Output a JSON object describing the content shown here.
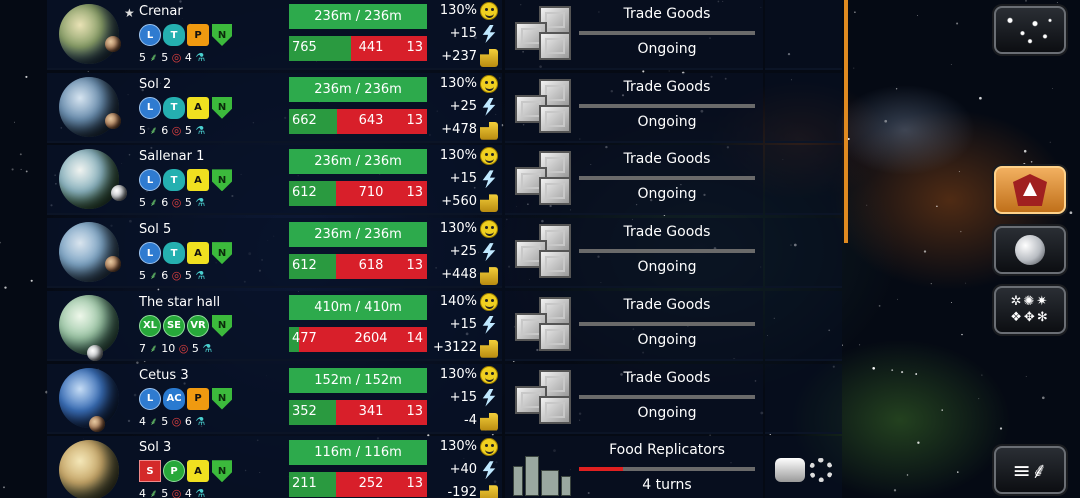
{
  "colors": {
    "pop_bar": "#2daa4c",
    "res_good": "#2a9a40",
    "res_bad": "#d81f2a",
    "scroll_thumb": "#e08a20",
    "active_button": "#e08a20"
  },
  "planets": [
    {
      "name": "Crenar",
      "starred": true,
      "badges": [
        {
          "t": "L",
          "k": "blue"
        },
        {
          "t": "T",
          "k": "cloud"
        },
        {
          "t": "P",
          "k": "orange"
        },
        {
          "t": "N",
          "k": "arrow"
        }
      ],
      "stat_a": "5",
      "stat_b": "5",
      "stat_c": "4",
      "population": "236m / 236m",
      "res_a": "765",
      "res_b": "441",
      "res_c": "13",
      "res_fraction": 0.45,
      "approval": "130%",
      "energy": "+15",
      "income": "+237",
      "project": "Trade Goods",
      "status": "Ongoing",
      "project_type": "crates",
      "progress": null
    },
    {
      "name": "Sol 2",
      "starred": false,
      "badges": [
        {
          "t": "L",
          "k": "blue"
        },
        {
          "t": "T",
          "k": "cloud"
        },
        {
          "t": "A",
          "k": "yellow"
        },
        {
          "t": "N",
          "k": "arrow"
        }
      ],
      "stat_a": "5",
      "stat_b": "6",
      "stat_c": "5",
      "population": "236m / 236m",
      "res_a": "662",
      "res_b": "643",
      "res_c": "13",
      "res_fraction": 0.35,
      "approval": "130%",
      "energy": "+25",
      "income": "+478",
      "project": "Trade Goods",
      "status": "Ongoing",
      "project_type": "crates",
      "progress": null
    },
    {
      "name": "Sallenar 1",
      "starred": false,
      "badges": [
        {
          "t": "L",
          "k": "blue"
        },
        {
          "t": "T",
          "k": "cloud"
        },
        {
          "t": "A",
          "k": "yellow"
        },
        {
          "t": "N",
          "k": "arrow"
        }
      ],
      "stat_a": "5",
      "stat_b": "6",
      "stat_c": "5",
      "population": "236m / 236m",
      "res_a": "612",
      "res_b": "710",
      "res_c": "13",
      "res_fraction": 0.34,
      "approval": "130%",
      "energy": "+15",
      "income": "+560",
      "project": "Trade Goods",
      "status": "Ongoing",
      "project_type": "crates",
      "progress": null
    },
    {
      "name": "Sol 5",
      "starred": false,
      "badges": [
        {
          "t": "L",
          "k": "blue"
        },
        {
          "t": "T",
          "k": "cloud"
        },
        {
          "t": "A",
          "k": "yellow"
        },
        {
          "t": "N",
          "k": "arrow"
        }
      ],
      "stat_a": "5",
      "stat_b": "6",
      "stat_c": "5",
      "population": "236m / 236m",
      "res_a": "612",
      "res_b": "618",
      "res_c": "13",
      "res_fraction": 0.34,
      "approval": "130%",
      "energy": "+25",
      "income": "+448",
      "project": "Trade Goods",
      "status": "Ongoing",
      "project_type": "crates",
      "progress": null
    },
    {
      "name": "The star hall",
      "starred": false,
      "badges": [
        {
          "t": "XL",
          "k": "green"
        },
        {
          "t": "SE",
          "k": "green"
        },
        {
          "t": "VR",
          "k": "green"
        },
        {
          "t": "N",
          "k": "arrow"
        }
      ],
      "stat_a": "7",
      "stat_b": "10",
      "stat_c": "5",
      "population": "410m / 410m",
      "res_a": "477",
      "res_b": "2604",
      "res_c": "14",
      "res_fraction": 0.07,
      "approval": "140%",
      "energy": "+15",
      "income": "+3122",
      "project": "Trade Goods",
      "status": "Ongoing",
      "project_type": "crates",
      "progress": null
    },
    {
      "name": "Cetus 3",
      "starred": false,
      "badges": [
        {
          "t": "L",
          "k": "blue"
        },
        {
          "t": "AC",
          "k": "cloudblue"
        },
        {
          "t": "P",
          "k": "orange"
        },
        {
          "t": "N",
          "k": "arrow"
        }
      ],
      "stat_a": "4",
      "stat_b": "5",
      "stat_c": "6",
      "population": "152m / 152m",
      "res_a": "352",
      "res_b": "341",
      "res_c": "13",
      "res_fraction": 0.34,
      "approval": "130%",
      "energy": "+15",
      "income": "-4",
      "project": "Trade Goods",
      "status": "Ongoing",
      "project_type": "crates",
      "progress": null
    },
    {
      "name": "Sol 3",
      "starred": false,
      "badges": [
        {
          "t": "S",
          "k": "red"
        },
        {
          "t": "P",
          "k": "green"
        },
        {
          "t": "A",
          "k": "yellow"
        },
        {
          "t": "N",
          "k": "arrow"
        }
      ],
      "stat_a": "4",
      "stat_b": "5",
      "stat_c": "4",
      "population": "116m / 116m",
      "res_a": "211",
      "res_b": "252",
      "res_c": "13",
      "res_fraction": 0.34,
      "approval": "130%",
      "energy": "+40",
      "income": "-192",
      "project": "Food Replicators",
      "status": "4 turns",
      "project_type": "factory",
      "progress": 0.25
    }
  ],
  "sidebar": {
    "buttons": [
      {
        "name": "galaxy-map-button",
        "icon": "stars-icon",
        "active": false
      },
      {
        "name": "empire-emblem-button",
        "icon": "emblem-icon",
        "active": true
      },
      {
        "name": "planets-button",
        "icon": "moon-icon",
        "active": false
      },
      {
        "name": "races-button",
        "icon": "species-icon",
        "active": false
      },
      {
        "name": "resources-button",
        "icon": "wheat-icon",
        "active": false
      }
    ]
  }
}
